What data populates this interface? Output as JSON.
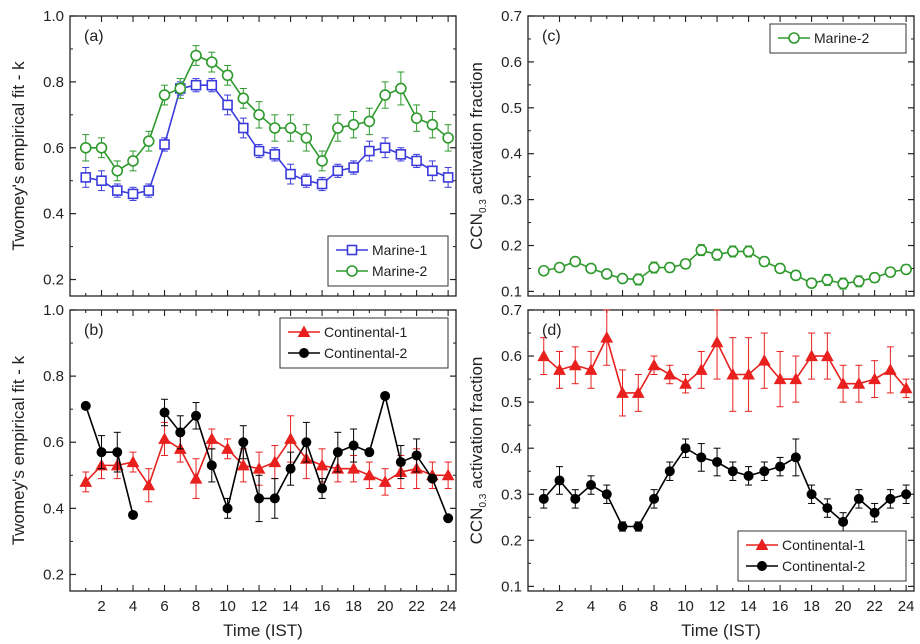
{
  "chart_data": [
    {
      "type": "line",
      "panel_label": "(a)",
      "ylabel": "Twomey's empirical fit - k",
      "xlabel": "",
      "xlim": [
        0,
        24.5
      ],
      "ylim": [
        0.15,
        1.0
      ],
      "xticks": [
        2,
        4,
        6,
        8,
        10,
        12,
        14,
        16,
        18,
        20,
        22,
        24
      ],
      "yticks": [
        0.2,
        0.4,
        0.6,
        0.8,
        1.0
      ],
      "yticks_labels": [
        "0.2",
        "0.4",
        "0.6",
        "0.8",
        "1.0"
      ],
      "legend_position": "bottom-right",
      "x": [
        1,
        2,
        3,
        4,
        5,
        6,
        7,
        8,
        9,
        10,
        11,
        12,
        13,
        14,
        15,
        16,
        17,
        18,
        19,
        20,
        21,
        22,
        23,
        24
      ],
      "series": [
        {
          "name": "Marine-1",
          "color": "#3b3bdc",
          "marker": "square-open",
          "values": [
            0.51,
            0.5,
            0.47,
            0.46,
            0.47,
            0.61,
            0.78,
            0.79,
            0.79,
            0.73,
            0.66,
            0.59,
            0.58,
            0.52,
            0.5,
            0.49,
            0.53,
            0.54,
            0.59,
            0.6,
            0.58,
            0.56,
            0.53,
            0.51
          ],
          "errors": [
            0.03,
            0.03,
            0.02,
            0.02,
            0.02,
            0.02,
            0.02,
            0.02,
            0.02,
            0.03,
            0.03,
            0.02,
            0.02,
            0.03,
            0.02,
            0.02,
            0.02,
            0.02,
            0.03,
            0.03,
            0.02,
            0.02,
            0.03,
            0.03
          ]
        },
        {
          "name": "Marine-2",
          "color": "#2e9a2e",
          "marker": "circle-open",
          "values": [
            0.6,
            0.6,
            0.53,
            0.56,
            0.62,
            0.76,
            0.78,
            0.88,
            0.86,
            0.82,
            0.75,
            0.7,
            0.66,
            0.66,
            0.63,
            0.56,
            0.66,
            0.67,
            0.68,
            0.76,
            0.78,
            0.69,
            0.67,
            0.63
          ],
          "errors": [
            0.04,
            0.03,
            0.03,
            0.03,
            0.03,
            0.03,
            0.03,
            0.03,
            0.03,
            0.03,
            0.03,
            0.04,
            0.04,
            0.04,
            0.04,
            0.03,
            0.04,
            0.04,
            0.04,
            0.04,
            0.05,
            0.04,
            0.04,
            0.04
          ]
        }
      ]
    },
    {
      "type": "line",
      "panel_label": "(b)",
      "ylabel": "Twomey's empirical fit - k",
      "xlabel": "Time (IST)",
      "xlim": [
        0,
        24.5
      ],
      "ylim": [
        0.15,
        1.0
      ],
      "xticks": [
        2,
        4,
        6,
        8,
        10,
        12,
        14,
        16,
        18,
        20,
        22,
        24
      ],
      "yticks": [
        0.2,
        0.4,
        0.6,
        0.8,
        1.0
      ],
      "yticks_labels": [
        "0.2",
        "0.4",
        "0.6",
        "0.8",
        "1.0"
      ],
      "legend_position": "top-right",
      "x": [
        1,
        2,
        3,
        4,
        5,
        6,
        7,
        8,
        9,
        10,
        11,
        12,
        13,
        14,
        15,
        16,
        17,
        18,
        19,
        20,
        21,
        22,
        23,
        24
      ],
      "series": [
        {
          "name": "Continental-1",
          "color": "#e8201e",
          "marker": "triangle",
          "values": [
            0.48,
            0.53,
            0.53,
            0.54,
            0.47,
            0.61,
            0.58,
            0.49,
            0.61,
            0.58,
            0.53,
            0.52,
            0.54,
            0.61,
            0.55,
            0.53,
            0.52,
            0.52,
            0.5,
            0.48,
            0.51,
            0.52,
            0.5,
            0.5
          ],
          "errors": [
            0.03,
            0.04,
            0.04,
            0.03,
            0.05,
            0.05,
            0.04,
            0.06,
            0.03,
            0.03,
            0.05,
            0.05,
            0.05,
            0.07,
            0.06,
            0.05,
            0.04,
            0.04,
            0.04,
            0.04,
            0.05,
            0.06,
            0.04,
            0.04
          ]
        },
        {
          "name": "Continental-2",
          "color": "#000000",
          "marker": "circle-filled",
          "values": [
            0.71,
            0.57,
            0.57,
            0.38,
            null,
            0.69,
            0.63,
            0.68,
            0.53,
            0.4,
            0.6,
            0.43,
            0.43,
            0.52,
            0.6,
            0.46,
            0.57,
            0.59,
            0.57,
            0.74,
            0.54,
            0.56,
            0.49,
            0.37
          ],
          "errors": [
            0,
            0.05,
            0.06,
            0,
            0,
            0.04,
            0.05,
            0.04,
            0.05,
            0.03,
            0.05,
            0.07,
            0.06,
            0.05,
            0.06,
            0.03,
            0.06,
            0.05,
            0,
            0,
            0.05,
            0.05,
            0,
            0
          ]
        }
      ]
    },
    {
      "type": "line",
      "panel_label": "(c)",
      "ylabel_main": "CCN",
      "ylabel_sub": "0.3",
      "ylabel_rest": " activation fraction",
      "xlabel": "",
      "xlim": [
        0,
        24.5
      ],
      "ylim": [
        0.09,
        0.7
      ],
      "xticks": [
        2,
        4,
        6,
        8,
        10,
        12,
        14,
        16,
        18,
        20,
        22,
        24
      ],
      "yticks": [
        0.1,
        0.2,
        0.3,
        0.4,
        0.5,
        0.6,
        0.7
      ],
      "yticks_labels": [
        "0.1",
        "0.2",
        "0.3",
        "0.4",
        "0.5",
        "0.6",
        "0.7"
      ],
      "legend_position": "top-right",
      "x": [
        1,
        2,
        3,
        4,
        5,
        6,
        7,
        8,
        9,
        10,
        11,
        12,
        13,
        14,
        15,
        16,
        17,
        18,
        19,
        20,
        21,
        22,
        23,
        24
      ],
      "series": [
        {
          "name": "Marine-2",
          "color": "#2e9a2e",
          "marker": "circle-open",
          "values": [
            0.145,
            0.152,
            0.165,
            0.15,
            0.138,
            0.128,
            0.126,
            0.152,
            0.152,
            0.16,
            0.19,
            0.18,
            0.187,
            0.187,
            0.165,
            0.15,
            0.135,
            0.118,
            0.125,
            0.117,
            0.122,
            0.13,
            0.142,
            0.148
          ],
          "errors": [
            0.008,
            0.008,
            0.008,
            0.008,
            0.008,
            0.008,
            0.012,
            0.012,
            0.01,
            0.01,
            0.012,
            0.012,
            0.012,
            0.012,
            0.01,
            0.01,
            0.01,
            0.01,
            0.012,
            0.012,
            0.012,
            0.01,
            0.01,
            0.01
          ]
        }
      ]
    },
    {
      "type": "line",
      "panel_label": "(d)",
      "ylabel_main": "CCN",
      "ylabel_sub": "0.3",
      "ylabel_rest": " activation fraction",
      "xlabel": "Time (IST)",
      "xlim": [
        0,
        24.5
      ],
      "ylim": [
        0.09,
        0.7
      ],
      "xticks": [
        2,
        4,
        6,
        8,
        10,
        12,
        14,
        16,
        18,
        20,
        22,
        24
      ],
      "yticks": [
        0.1,
        0.2,
        0.3,
        0.4,
        0.5,
        0.6,
        0.7
      ],
      "yticks_labels": [
        "0.1",
        "0.2",
        "0.3",
        "0.4",
        "0.5",
        "0.6",
        "0.7"
      ],
      "legend_position": "bottom-right",
      "x": [
        1,
        2,
        3,
        4,
        5,
        6,
        7,
        8,
        9,
        10,
        11,
        12,
        13,
        14,
        15,
        16,
        17,
        18,
        19,
        20,
        21,
        22,
        23,
        24
      ],
      "series": [
        {
          "name": "Continental-1",
          "color": "#e8201e",
          "marker": "triangle",
          "values": [
            0.6,
            0.57,
            0.58,
            0.57,
            0.64,
            0.52,
            0.52,
            0.58,
            0.56,
            0.54,
            0.57,
            0.63,
            0.56,
            0.56,
            0.59,
            0.55,
            0.55,
            0.6,
            0.6,
            0.54,
            0.54,
            0.55,
            0.57,
            0.53
          ],
          "errors": [
            0.04,
            0.04,
            0.04,
            0.04,
            0.06,
            0.05,
            0.04,
            0.02,
            0.02,
            0.02,
            0.04,
            0.08,
            0.08,
            0.08,
            0.06,
            0.06,
            0.05,
            0.05,
            0.05,
            0.04,
            0.04,
            0.04,
            0.05,
            0.02
          ]
        },
        {
          "name": "Continental-2",
          "color": "#000000",
          "marker": "circle-filled",
          "values": [
            0.29,
            0.33,
            0.29,
            0.32,
            0.3,
            0.23,
            0.23,
            0.29,
            0.35,
            0.4,
            0.38,
            0.37,
            0.35,
            0.34,
            0.35,
            0.36,
            0.38,
            0.3,
            0.27,
            0.24,
            0.29,
            0.26,
            0.29,
            0.3
          ],
          "errors": [
            0.02,
            0.03,
            0.02,
            0.02,
            0.02,
            0.01,
            0.01,
            0.02,
            0.02,
            0.02,
            0.03,
            0.03,
            0.02,
            0.02,
            0.02,
            0.02,
            0.04,
            0.02,
            0.02,
            0.02,
            0.02,
            0.02,
            0.02,
            0.02
          ]
        }
      ]
    }
  ]
}
